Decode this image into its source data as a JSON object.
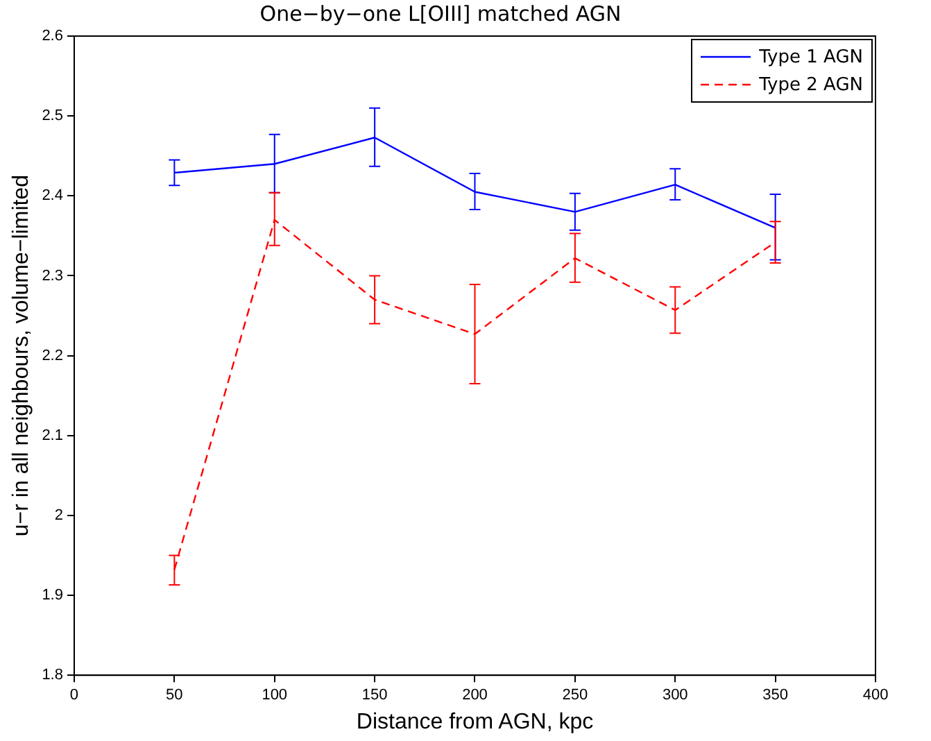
{
  "chart_data": {
    "type": "line",
    "title": "One−by−one L[OIII] matched AGN",
    "xlabel": "Distance from AGN, kpc",
    "ylabel": "u−r in all neighbours, volume−limited",
    "x": [
      50,
      100,
      150,
      200,
      250,
      300,
      350
    ],
    "series": [
      {
        "name": "Type 1 AGN",
        "color": "#0000ff",
        "line_style": "solid",
        "values": [
          2.429,
          2.44,
          2.473,
          2.405,
          2.38,
          2.414,
          2.36
        ],
        "errors": [
          [
            2.413,
            2.445
          ],
          [
            2.404,
            2.477
          ],
          [
            2.437,
            2.51
          ],
          [
            2.383,
            2.428
          ],
          [
            2.357,
            2.403
          ],
          [
            2.395,
            2.434
          ],
          [
            2.32,
            2.402
          ]
        ]
      },
      {
        "name": "Type 2 AGN",
        "color": "#ff0000",
        "line_style": "dashed",
        "values": [
          1.932,
          2.37,
          2.27,
          2.227,
          2.322,
          2.257,
          2.342
        ],
        "errors": [
          [
            1.913,
            1.95
          ],
          [
            2.338,
            2.404
          ],
          [
            2.24,
            2.3
          ],
          [
            2.165,
            2.289
          ],
          [
            2.292,
            2.353
          ],
          [
            2.228,
            2.286
          ],
          [
            2.316,
            2.368
          ]
        ]
      }
    ],
    "xlim": [
      0,
      400
    ],
    "xticks": [
      0,
      50,
      100,
      150,
      200,
      250,
      300,
      350,
      400
    ],
    "ylim": [
      1.8,
      2.6
    ],
    "yticks": [
      1.8,
      1.9,
      2,
      2.1,
      2.2,
      2.3,
      2.4,
      2.5,
      2.6
    ],
    "grid": false,
    "legend": "top right",
    "marker": "none"
  }
}
